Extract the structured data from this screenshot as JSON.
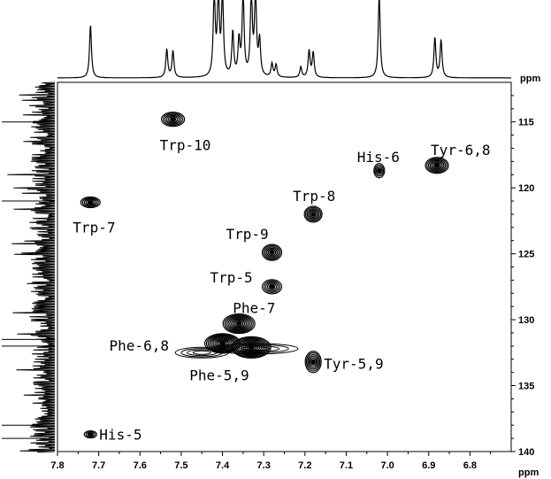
{
  "chart_data": {
    "type": "scatter",
    "x_unit": "ppm",
    "y_unit": "ppm",
    "xlim": [
      7.8,
      6.7
    ],
    "ylim": [
      112,
      140
    ],
    "x_ticks": [
      "7.8",
      "7.7",
      "7.6",
      "7.5",
      "7.4",
      "7.3",
      "7.2",
      "7.1",
      "7.0",
      "6.9",
      "6.8"
    ],
    "y_ticks": [
      "115",
      "120",
      "125",
      "130",
      "135",
      "140"
    ],
    "peaks": [
      {
        "label": "Trp-10",
        "x": 7.52,
        "y": 114.8
      },
      {
        "label": "His-6",
        "x": 7.02,
        "y": 118.7
      },
      {
        "label": "Tyr-6,8",
        "x": 6.88,
        "y": 118.3
      },
      {
        "label": "Trp-7",
        "x": 7.72,
        "y": 121.1
      },
      {
        "label": "Trp-8",
        "x": 7.18,
        "y": 122.0
      },
      {
        "label": "Trp-9",
        "x": 7.28,
        "y": 124.9
      },
      {
        "label": "Trp-5",
        "x": 7.28,
        "y": 127.5
      },
      {
        "label": "Phe-7",
        "x": 7.36,
        "y": 130.3
      },
      {
        "label": "Phe-6,8",
        "x": 7.4,
        "y": 131.8
      },
      {
        "label": "Phe-5,9",
        "x": 7.33,
        "y": 132.1
      },
      {
        "label": "Tyr-5,9",
        "x": 7.18,
        "y": 133.2
      },
      {
        "label": "His-5",
        "x": 7.72,
        "y": 138.7
      }
    ],
    "projection_1d_peaks_ppm": [
      7.72,
      7.535,
      7.52,
      7.42,
      7.41,
      7.4,
      7.375,
      7.36,
      7.35,
      7.33,
      7.32,
      7.31,
      7.28,
      7.27,
      7.21,
      7.19,
      7.18,
      7.02,
      6.885,
      6.87
    ],
    "grid": false
  }
}
